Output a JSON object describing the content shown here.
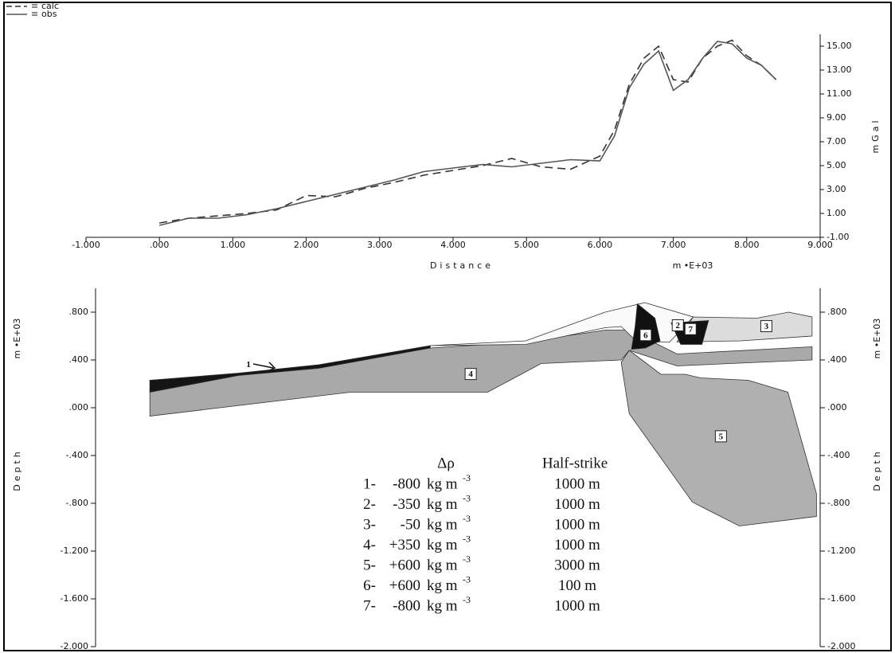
{
  "chart_data": [
    {
      "type": "line",
      "x_label": "Distance",
      "x_unit": "m   •E+03",
      "y_label": "mGal",
      "x": [
        0,
        0.4,
        0.8,
        1.2,
        1.6,
        2.0,
        2.4,
        2.8,
        3.2,
        3.6,
        4.0,
        4.4,
        4.8,
        5.2,
        5.6,
        6.0,
        6.2,
        6.4,
        6.6,
        6.8,
        7.0,
        7.2,
        7.4,
        7.6,
        7.8,
        8.0,
        8.2,
        8.4
      ],
      "series": [
        {
          "name": "calc",
          "color": "#333333",
          "dashed": true,
          "values": [
            0.2,
            0.6,
            0.8,
            1.0,
            1.3,
            2.5,
            2.4,
            3.1,
            3.6,
            4.2,
            4.6,
            5.0,
            5.6,
            4.9,
            4.7,
            5.8,
            8.0,
            11.8,
            14.0,
            15.0,
            12.2,
            12.0,
            14.0,
            15.0,
            15.5,
            14.2,
            13.4,
            12.2
          ]
        },
        {
          "name": "obs",
          "color": "#555555",
          "dashed": false,
          "values": [
            0.0,
            0.6,
            0.6,
            0.9,
            1.4,
            2.0,
            2.6,
            3.2,
            3.8,
            4.5,
            4.8,
            5.1,
            4.9,
            5.2,
            5.5,
            5.4,
            7.5,
            11.5,
            13.5,
            14.6,
            11.3,
            12.2,
            14.0,
            15.4,
            15.2,
            14.0,
            13.4,
            12.2
          ]
        }
      ],
      "xlim": [
        -1,
        9
      ],
      "xticks": [
        {
          "value": -1,
          "label": "-1.000"
        },
        {
          "value": 0,
          "label": ".000"
        },
        {
          "value": 1,
          "label": "1.000"
        },
        {
          "value": 2,
          "label": "2.000"
        },
        {
          "value": 3,
          "label": "3.000"
        },
        {
          "value": 4,
          "label": "4.000"
        },
        {
          "value": 5,
          "label": "5.000"
        },
        {
          "value": 6,
          "label": "6.000"
        },
        {
          "value": 7,
          "label": "7.000"
        },
        {
          "value": 8,
          "label": "8.000"
        },
        {
          "value": 9,
          "label": "9.000"
        }
      ],
      "ylim": [
        -1,
        16
      ],
      "yticks": [
        {
          "value": -1,
          "label": "-1.00"
        },
        {
          "value": 1,
          "label": "1.00"
        },
        {
          "value": 3,
          "label": "3.00"
        },
        {
          "value": 5,
          "label": "5.00"
        },
        {
          "value": 7,
          "label": "7.00"
        },
        {
          "value": 9,
          "label": "9.00"
        },
        {
          "value": 11,
          "label": "11.00"
        },
        {
          "value": 13,
          "label": "13.00"
        },
        {
          "value": 15,
          "label": "15.00"
        }
      ]
    },
    {
      "type": "section",
      "y_label": "Depth",
      "y_unit": "m   •E+03",
      "xlim": [
        -1,
        9
      ],
      "ylim": [
        -2,
        1
      ],
      "yticks": [
        {
          "value": 0.8,
          "label": ".800"
        },
        {
          "value": 0.4,
          "label": ".400"
        },
        {
          "value": 0,
          "label": ".000"
        },
        {
          "value": -0.4,
          "label": "-.400"
        },
        {
          "value": -0.8,
          "label": "-.800"
        },
        {
          "value": -1.2,
          "label": "-1.200"
        },
        {
          "value": -1.6,
          "label": "-1.600"
        },
        {
          "value": -2,
          "label": "-2.000"
        }
      ],
      "bodies": [
        {
          "name": "4",
          "color": "#a9a9a9",
          "x": [
            -0.13,
            1.08,
            2.49,
            3.69,
            4.99,
            6.07,
            6.4,
            7.05,
            8.89,
            8.89,
            7.05,
            6.4,
            6.29,
            5.2,
            4.47,
            2.6,
            -0.13
          ],
          "y": [
            0.23,
            0.28,
            0.38,
            0.5,
            0.55,
            0.65,
            0.65,
            0.45,
            0.51,
            0.4,
            0.35,
            0.48,
            0.4,
            0.37,
            0.13,
            0.13,
            -0.07
          ]
        },
        {
          "name": "5",
          "color": "#b0b0b0",
          "x": [
            6.4,
            6.83,
            7.16,
            7.37,
            8.02,
            8.56,
            8.95,
            8.95,
            7.9,
            7.26,
            6.4,
            6.29
          ],
          "y": [
            0.48,
            0.28,
            0.28,
            0.25,
            0.23,
            0.13,
            -0.72,
            -0.91,
            -0.99,
            -0.79,
            -0.05,
            0.38
          ]
        },
        {
          "name": "1",
          "color": "#151515",
          "x": [
            -0.13,
            1.08,
            2.17,
            3.69,
            3.69,
            2.17,
            1.08,
            -0.13
          ],
          "y": [
            0.23,
            0.29,
            0.36,
            0.52,
            0.5,
            0.33,
            0.27,
            0.13
          ]
        },
        {
          "name": "2",
          "color": "#fafafa",
          "x": [
            3.69,
            4.99,
            6.07,
            6.61,
            7.27,
            6.95,
            6.51,
            6.29,
            6.07,
            4.99
          ],
          "y": [
            0.52,
            0.56,
            0.8,
            0.88,
            0.76,
            0.55,
            0.55,
            0.68,
            0.67,
            0.53
          ]
        },
        {
          "name": "3",
          "color": "#dcdcdc",
          "x": [
            7.27,
            8.14,
            8.57,
            8.89,
            8.89,
            7.92,
            7.05
          ],
          "y": [
            0.76,
            0.75,
            0.8,
            0.76,
            0.6,
            0.56,
            0.55
          ]
        },
        {
          "name": "6",
          "color": "#111111",
          "x": [
            6.51,
            6.75,
            6.82,
            6.62,
            6.43,
            6.48
          ],
          "y": [
            0.87,
            0.75,
            0.56,
            0.5,
            0.49,
            0.68
          ]
        },
        {
          "name": "7",
          "color": "#111111",
          "x": [
            6.97,
            7.48,
            7.39,
            7.1
          ],
          "y": [
            0.71,
            0.73,
            0.53,
            0.53
          ]
        }
      ],
      "table": {
        "headers": [
          "Δρ",
          "Half-strike"
        ],
        "rows": [
          {
            "id": "1-",
            "density": "-800",
            "unit": "kg m",
            "exp": "-3",
            "half_strike": "1000 m"
          },
          {
            "id": "2-",
            "density": "-350",
            "unit": "kg m",
            "exp": "-3",
            "half_strike": "1000 m"
          },
          {
            "id": "3-",
            "density": "-50",
            "unit": "kg m",
            "exp": "-3",
            "half_strike": "1000 m"
          },
          {
            "id": "4-",
            "density": "+350",
            "unit": "kg m",
            "exp": "-3",
            "half_strike": "1000 m"
          },
          {
            "id": "5-",
            "density": "+600",
            "unit": "kg m",
            "exp": "-3",
            "half_strike": "3000 m"
          },
          {
            "id": "6-",
            "density": "+600",
            "unit": "kg m",
            "exp": "-3",
            "half_strike": "100  m"
          },
          {
            "id": "7-",
            "density": "-800",
            "unit": "kg m",
            "exp": "-3",
            "half_strike": "1000 m"
          }
        ]
      }
    }
  ]
}
